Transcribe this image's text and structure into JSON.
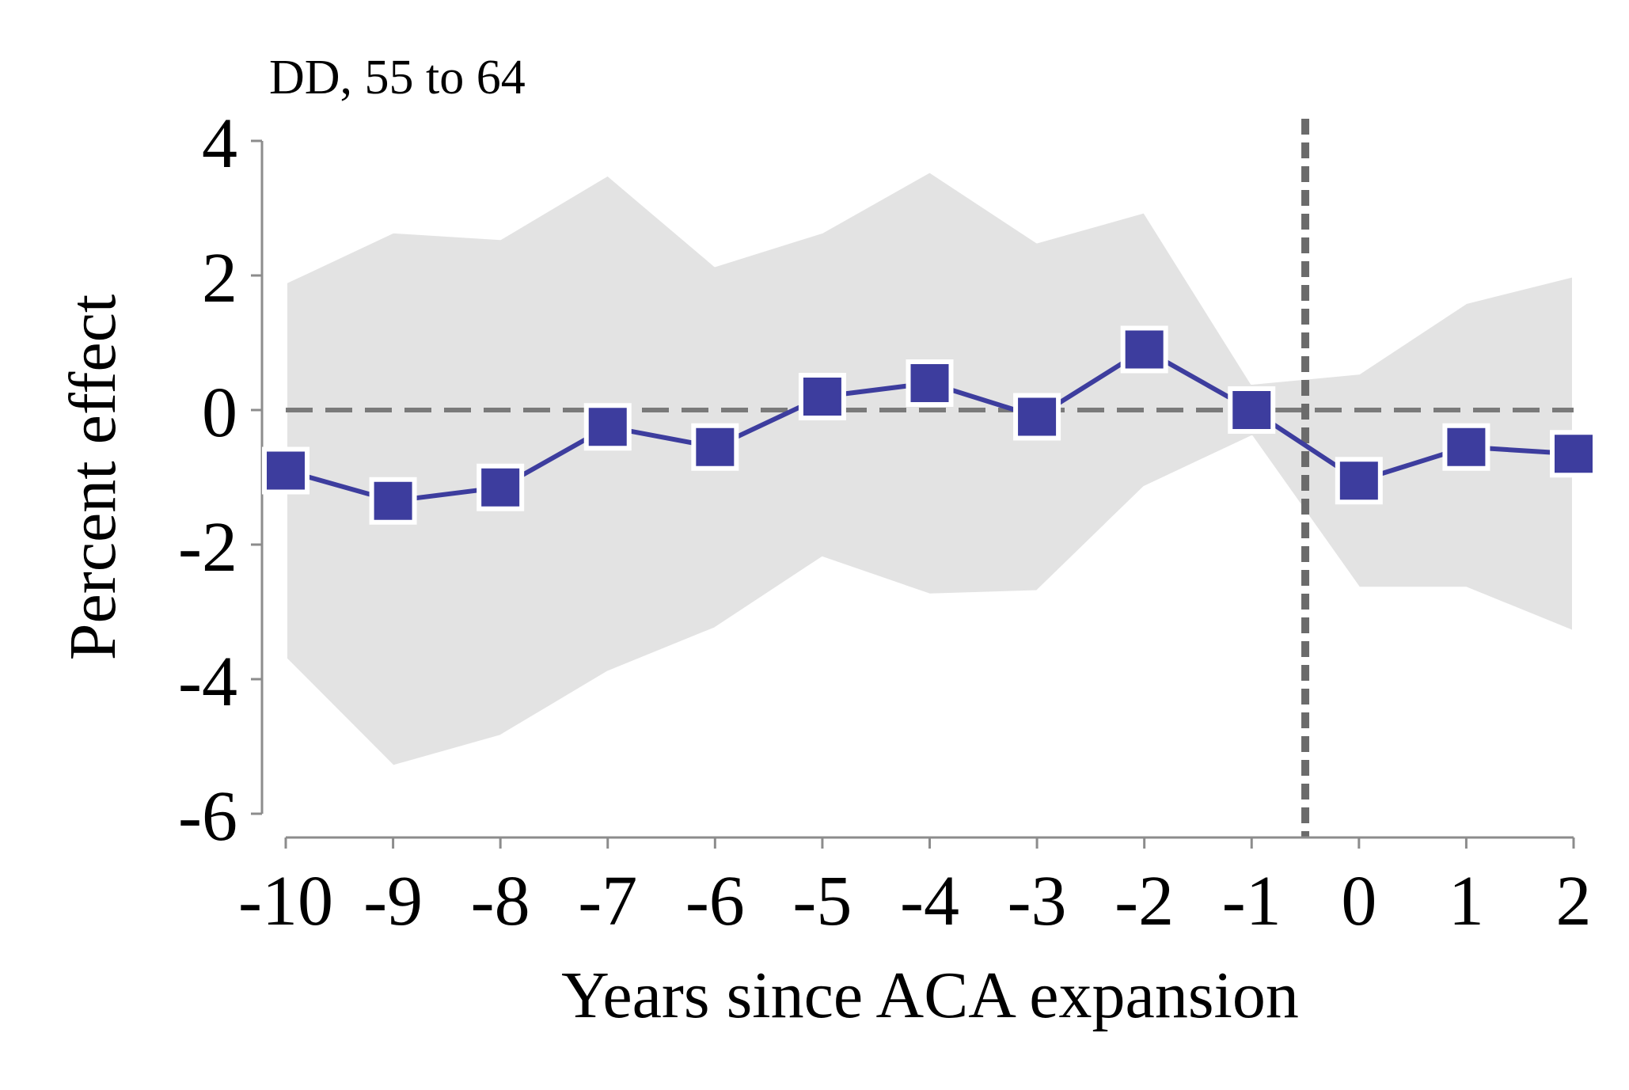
{
  "chart_data": {
    "type": "line",
    "title": "DD, 55 to 64",
    "xlabel": "Years since ACA expansion",
    "ylabel": "Percent effect",
    "x": [
      -10,
      -9,
      -8,
      -7,
      -6,
      -5,
      -4,
      -3,
      -2,
      -1,
      0,
      1,
      2
    ],
    "xticks": [
      "-10",
      "-9",
      "-8",
      "-7",
      "-6",
      "-5",
      "-4",
      "-3",
      "-2",
      "-1",
      "0",
      "1",
      "2"
    ],
    "yticks": [
      "4",
      "2",
      "0",
      "-2",
      "-4",
      "-6"
    ],
    "ylim": [
      -6,
      4
    ],
    "xlim": [
      -10,
      2
    ],
    "series": [
      {
        "values": [
          -0.9,
          -1.35,
          -1.15,
          -0.25,
          -0.55,
          0.2,
          0.4,
          -0.1,
          0.9,
          0.0,
          -1.05,
          -0.55,
          -0.65
        ],
        "ci_upper": [
          1.9,
          2.65,
          2.55,
          3.5,
          2.15,
          2.65,
          3.55,
          2.5,
          2.95,
          0.4,
          0.55,
          1.6,
          2.0
        ],
        "ci_lower": [
          -3.7,
          -5.3,
          -4.85,
          -3.9,
          -3.25,
          -2.2,
          -2.75,
          -2.7,
          -1.15,
          -0.4,
          -2.65,
          -2.65,
          -3.3
        ],
        "color": "#3d3d9e",
        "marker": "square"
      }
    ],
    "reference_lines": {
      "horizontal_zero": {
        "y": 0,
        "color": "#7a7a7a",
        "style": "dashed"
      },
      "vertical_event": {
        "x": -0.5,
        "color": "#6b6b6b",
        "style": "dashed"
      }
    },
    "ci_band_color": "#e3e3e3",
    "grid": false,
    "legend": "none"
  }
}
